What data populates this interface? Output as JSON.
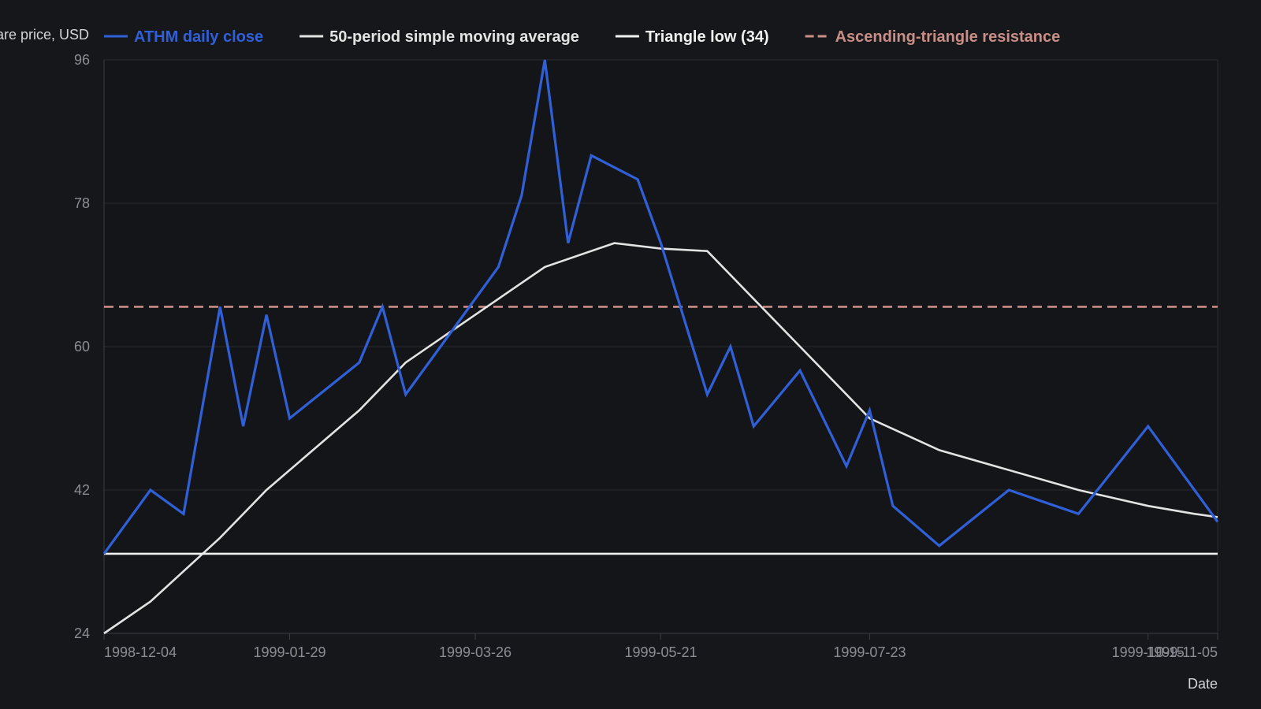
{
  "colors": {
    "background": "#16171b",
    "plot_background": "#141518",
    "grid": "#2a2c31",
    "axis": "#3a3d43",
    "tick_text": "#8a8d94",
    "axis_text": "#d2d4d8"
  },
  "chart_data": {
    "type": "line",
    "title": "",
    "xlabel": "Date",
    "ylabel": "Share price, USD",
    "ylim": [
      24,
      96
    ],
    "yticks": [
      24,
      42,
      60,
      78,
      96
    ],
    "xlim": [
      "1998-12-04",
      "1999-11-05"
    ],
    "xticks": [
      "1998-12-04",
      "1999-01-29",
      "1999-03-26",
      "1999-05-21",
      "1999-07-23",
      "1999-10-15",
      "1999-11-05"
    ],
    "grid": true,
    "legend_position": "top",
    "series": [
      {
        "name": "ATHM daily close",
        "color": "#3060d8",
        "style": "solid",
        "x": [
          "1998-12-04",
          "1998-12-18",
          "1998-12-28",
          "1999-01-08",
          "1999-01-15",
          "1999-01-22",
          "1999-01-29",
          "1999-02-19",
          "1999-02-26",
          "1999-03-05",
          "1999-03-19",
          "1999-03-26",
          "1999-04-02",
          "1999-04-09",
          "1999-04-16",
          "1999-04-23",
          "1999-04-30",
          "1999-05-14",
          "1999-05-21",
          "1999-06-04",
          "1999-06-11",
          "1999-06-18",
          "1999-07-02",
          "1999-07-16",
          "1999-07-23",
          "1999-07-30",
          "1999-08-13",
          "1999-09-03",
          "1999-09-24",
          "1999-10-15",
          "1999-11-05"
        ],
        "y": [
          34,
          42,
          39,
          65,
          50,
          64,
          51,
          58,
          65,
          54,
          62,
          66,
          70,
          79,
          96,
          73,
          84,
          81,
          73,
          54,
          60,
          50,
          57,
          45,
          52,
          40,
          35,
          42,
          39,
          50,
          38
        ]
      },
      {
        "name": "50-period simple moving average",
        "color": "#e3e3e3",
        "style": "solid",
        "x": [
          "1998-12-04",
          "1998-12-18",
          "1999-01-08",
          "1999-01-22",
          "1999-02-19",
          "1999-03-05",
          "1999-03-26",
          "1999-04-16",
          "1999-05-07",
          "1999-05-21",
          "1999-06-04",
          "1999-07-02",
          "1999-07-16",
          "1999-07-23",
          "1999-08-13",
          "1999-09-24",
          "1999-10-15",
          "1999-10-29",
          "1999-11-05"
        ],
        "y": [
          24,
          28,
          36,
          42,
          52,
          58,
          64,
          70,
          73,
          72.3,
          72,
          60,
          54,
          51,
          47,
          42,
          40,
          39,
          38.6
        ]
      },
      {
        "name": "Triangle low (34)",
        "color": "#f0f0f0",
        "style": "solid",
        "x": [
          "1998-12-04",
          "1999-11-05"
        ],
        "y": [
          34,
          34
        ]
      },
      {
        "name": "Ascending-triangle resistance",
        "color": "#c98e86",
        "style": "dashed",
        "x": [
          "1998-12-04",
          "1999-11-05"
        ],
        "y": [
          65,
          65
        ]
      }
    ]
  }
}
